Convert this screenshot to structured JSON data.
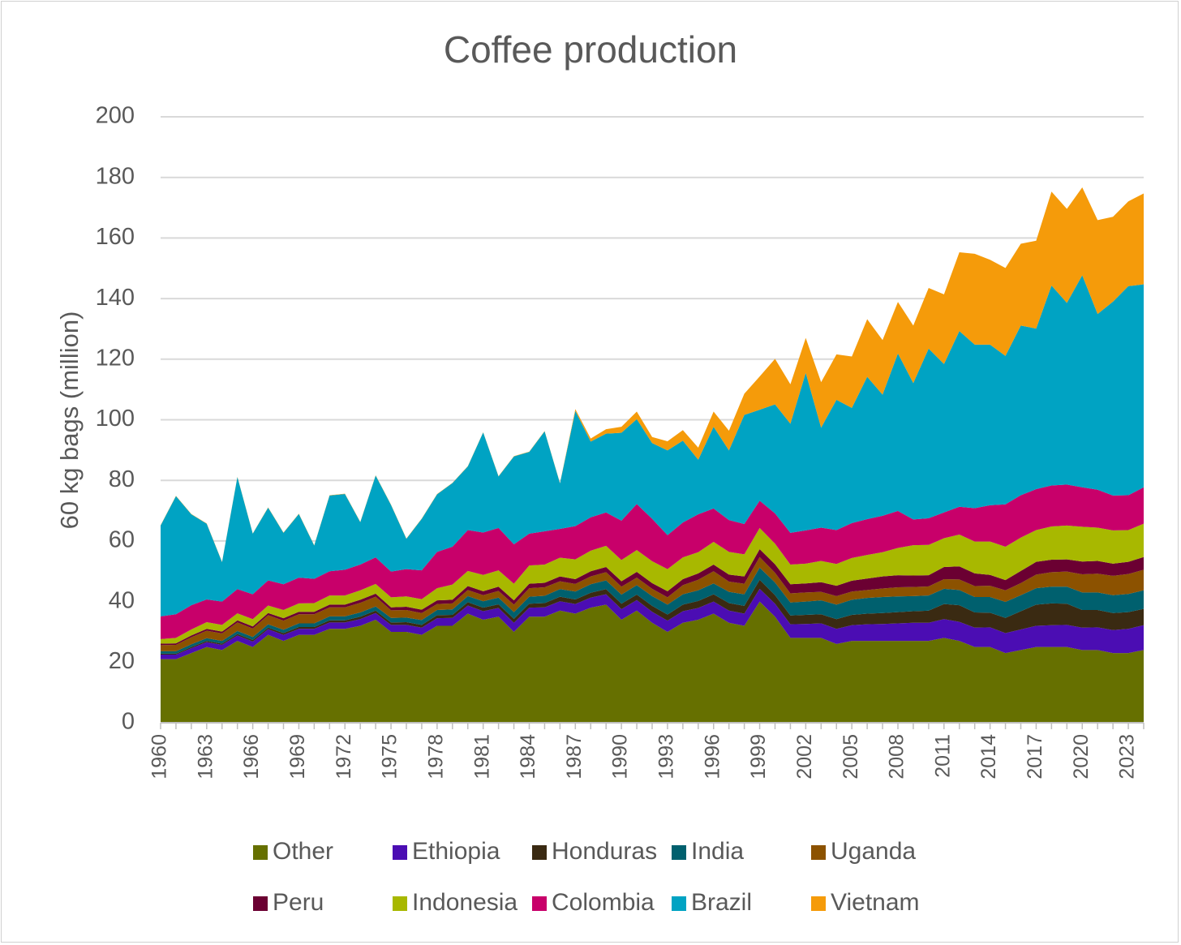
{
  "chart_data": {
    "type": "area",
    "stacked": true,
    "title": "Coffee production",
    "ylabel": "60 kg bags (million)",
    "xlabel": "",
    "ylim": [
      0,
      200
    ],
    "yticks": [
      0,
      20,
      40,
      60,
      80,
      100,
      120,
      140,
      160,
      180,
      200
    ],
    "grid": "horizontal",
    "legend_position": "bottom",
    "x": [
      1960,
      1961,
      1962,
      1963,
      1964,
      1965,
      1966,
      1967,
      1968,
      1969,
      1970,
      1971,
      1972,
      1973,
      1974,
      1975,
      1976,
      1977,
      1978,
      1979,
      1980,
      1981,
      1982,
      1983,
      1984,
      1985,
      1986,
      1987,
      1988,
      1989,
      1990,
      1991,
      1992,
      1993,
      1994,
      1995,
      1996,
      1997,
      1998,
      1999,
      2000,
      2001,
      2002,
      2003,
      2004,
      2005,
      2006,
      2007,
      2008,
      2009,
      2010,
      2011,
      2012,
      2013,
      2014,
      2015,
      2016,
      2017,
      2018,
      2019,
      2020,
      2021,
      2022,
      2023,
      2024
    ],
    "x_tick_labels": [
      "1960",
      "1963",
      "1966",
      "1969",
      "1972",
      "1975",
      "1978",
      "1981",
      "1984",
      "1987",
      "1990",
      "1993",
      "1996",
      "1999",
      "2002",
      "2005",
      "2008",
      "2011",
      "2014",
      "2017",
      "2020",
      "2023"
    ],
    "series": [
      {
        "name": "Other",
        "color": "#667000",
        "values": [
          21,
          21,
          23,
          25,
          24,
          27,
          25,
          29,
          27,
          29,
          29,
          31,
          31,
          32,
          34,
          30,
          30,
          29,
          32,
          32,
          36,
          34,
          35,
          30,
          35,
          35,
          37,
          36,
          38,
          39,
          34,
          37,
          33,
          30,
          33,
          34,
          36,
          33,
          32,
          40,
          35,
          28,
          28,
          28,
          26,
          27,
          27,
          27,
          27,
          27,
          27,
          28,
          27,
          25,
          25,
          23,
          24,
          25,
          25,
          25,
          24,
          24,
          23,
          23,
          24
        ]
      },
      {
        "name": "Ethiopia",
        "color": "#4b0db3",
        "values": [
          1.5,
          1.5,
          1.6,
          1.6,
          1.7,
          1.8,
          1.8,
          1.9,
          2,
          2,
          2,
          2.1,
          2.1,
          2.2,
          2.2,
          2.3,
          2.3,
          2.4,
          2.5,
          2.6,
          2.7,
          2.8,
          2.9,
          3,
          3,
          3.1,
          3.1,
          3.2,
          3.3,
          3.4,
          3.5,
          3.5,
          3.6,
          3.7,
          3.8,
          3.9,
          4,
          4,
          4,
          4.2,
          4.3,
          4.5,
          4.6,
          4.8,
          5,
          5.2,
          5.5,
          5.6,
          5.8,
          6,
          6,
          6.2,
          6.3,
          6.4,
          6.5,
          6.6,
          6.8,
          7,
          7.2,
          7.3,
          7.4,
          7.5,
          7.6,
          8,
          8.2
        ]
      },
      {
        "name": "Honduras",
        "color": "#3a2a12",
        "values": [
          0.3,
          0.3,
          0.4,
          0.4,
          0.4,
          0.5,
          0.5,
          0.5,
          0.6,
          0.6,
          0.6,
          0.7,
          0.7,
          0.8,
          0.8,
          0.8,
          0.9,
          0.9,
          1,
          1,
          1.1,
          1.2,
          1.2,
          1.3,
          1.3,
          1.4,
          1.5,
          1.5,
          1.6,
          1.7,
          1.8,
          1.8,
          2,
          2,
          2.2,
          2.3,
          2.4,
          2.5,
          2.6,
          3,
          2.8,
          2.9,
          3,
          3,
          3.2,
          3.4,
          3.5,
          3.6,
          3.7,
          3.8,
          4,
          5,
          5.5,
          5,
          4.8,
          5,
          6,
          7,
          7.2,
          7,
          5.8,
          5.7,
          5.6,
          5.5,
          5.4
        ]
      },
      {
        "name": "India",
        "color": "#00606e",
        "values": [
          0.8,
          0.8,
          0.9,
          0.9,
          0.9,
          1,
          1,
          1.1,
          1.1,
          1.2,
          1.2,
          1.3,
          1.3,
          1.4,
          1.4,
          1.5,
          1.5,
          1.6,
          1.7,
          1.8,
          2,
          2.1,
          2.2,
          2.2,
          2.3,
          2.4,
          2.5,
          2.6,
          2.8,
          2.9,
          3,
          3.1,
          3.2,
          3.3,
          3.4,
          3.5,
          3.6,
          3.7,
          3.8,
          4,
          4.2,
          4.3,
          4.4,
          4.6,
          4.8,
          5,
          5.2,
          5.3,
          5.2,
          5,
          5,
          5,
          5,
          5.1,
          5.2,
          5.3,
          5.3,
          5.4,
          5.5,
          5.6,
          5.8,
          5.8,
          5.9,
          6,
          6.1
        ]
      },
      {
        "name": "Uganda",
        "color": "#8c5200",
        "values": [
          2,
          2.1,
          2.3,
          2.5,
          2.5,
          2.8,
          2.8,
          3,
          3,
          3,
          3,
          3,
          3,
          3.2,
          3.2,
          2.5,
          2.5,
          2.3,
          2,
          2,
          2,
          2,
          2.2,
          2.5,
          2.8,
          2.8,
          2.6,
          2.5,
          2.6,
          2.7,
          2.6,
          2.5,
          2.4,
          2.4,
          3,
          3.5,
          4,
          3.4,
          3.5,
          3.5,
          3.2,
          3,
          3,
          2.8,
          2.8,
          2.7,
          2.6,
          2.8,
          3,
          3,
          3,
          3.2,
          3.5,
          3.6,
          3.7,
          3.8,
          4,
          4.5,
          4.8,
          5,
          6,
          6.2,
          6.4,
          6.6,
          6.8
        ]
      },
      {
        "name": "Peru",
        "color": "#6b0032",
        "values": [
          0.5,
          0.5,
          0.6,
          0.6,
          0.6,
          0.7,
          0.7,
          0.7,
          0.8,
          0.8,
          0.8,
          0.9,
          0.9,
          1,
          1,
          1,
          1.1,
          1.1,
          1.2,
          1.2,
          1.3,
          1.3,
          1.4,
          1.4,
          1.5,
          1.5,
          1.6,
          1.6,
          1.7,
          1.7,
          1.8,
          1.9,
          1.9,
          2,
          2,
          2.1,
          2.2,
          2.3,
          2.4,
          2.6,
          2.8,
          3,
          3,
          3.2,
          3.4,
          3.6,
          3.8,
          4,
          4,
          3.8,
          3.7,
          4,
          4.3,
          4.2,
          3.6,
          3.4,
          4,
          4.2,
          4.1,
          4,
          4.2,
          4.2,
          4,
          4,
          4.2
        ]
      },
      {
        "name": "Indonesia",
        "color": "#a8b800",
        "values": [
          1.5,
          1.8,
          2,
          2.2,
          2.2,
          2.3,
          2.4,
          2.5,
          2.7,
          2.8,
          2.9,
          3,
          3,
          3.1,
          3.2,
          3.3,
          3.4,
          3.5,
          4,
          5,
          5,
          5.4,
          5.4,
          5.5,
          6,
          6,
          6.2,
          6.5,
          6.8,
          7,
          7,
          7.2,
          7.2,
          7.3,
          7.2,
          7,
          7.5,
          7.5,
          7.3,
          7,
          6.8,
          6.5,
          6.5,
          7,
          7.2,
          7.5,
          7.8,
          8,
          9,
          10,
          10,
          9.5,
          10.5,
          10.5,
          11,
          11,
          11,
          10.5,
          11,
          11.2,
          11.5,
          11,
          11,
          10.5,
          11
        ]
      },
      {
        "name": "Colombia",
        "color": "#c8006a",
        "values": [
          7.5,
          7.8,
          8,
          7.5,
          7.7,
          8,
          8.2,
          8.3,
          8.5,
          8.5,
          8,
          8,
          8.5,
          8.5,
          8.8,
          8.5,
          9,
          9.5,
          12,
          12.5,
          13.5,
          14,
          14,
          13,
          10.5,
          11,
          9.5,
          11,
          11,
          11,
          13,
          15.2,
          14,
          11.2,
          11.5,
          12.5,
          11,
          10.5,
          10,
          9,
          10,
          10.5,
          11,
          11,
          11.2,
          11.5,
          11.8,
          12,
          12.2,
          8.5,
          8.8,
          8.5,
          9.2,
          11,
          12,
          14,
          14,
          13.5,
          13.5,
          13.5,
          13,
          12.5,
          11.5,
          11.5,
          12
        ]
      },
      {
        "name": "Brazil",
        "color": "#00a3c3",
        "values": [
          30,
          39,
          30,
          25,
          13,
          37,
          20,
          24,
          17,
          21,
          11,
          25,
          25,
          14,
          27,
          22,
          10,
          17,
          19,
          21,
          21,
          33,
          17,
          29,
          27,
          33,
          15,
          38,
          25,
          26,
          29,
          28,
          25,
          28,
          27,
          18,
          27,
          23,
          36,
          30,
          36,
          36,
          52,
          33,
          43,
          38,
          47,
          40,
          52,
          45,
          56,
          49,
          58,
          54,
          53,
          49,
          56,
          53,
          66,
          60,
          70,
          58,
          64,
          69,
          67
        ]
      },
      {
        "name": "Vietnam",
        "color": "#f59b0a",
        "values": [
          0.1,
          0.1,
          0.1,
          0.1,
          0.1,
          0.1,
          0.1,
          0.1,
          0.1,
          0.1,
          0.1,
          0.1,
          0.1,
          0.1,
          0.1,
          0.1,
          0.1,
          0.1,
          0.1,
          0.1,
          0.1,
          0.1,
          0.1,
          0.1,
          0.1,
          0.1,
          0.1,
          0.6,
          1,
          1.5,
          2,
          2.5,
          2,
          3,
          3.5,
          4,
          5,
          6.5,
          7,
          11,
          15,
          13,
          11.5,
          15,
          15,
          17,
          19,
          18,
          17,
          19,
          20,
          23,
          26,
          30,
          28,
          29,
          27,
          29,
          31,
          31,
          29,
          31,
          28,
          28,
          30
        ]
      }
    ]
  }
}
